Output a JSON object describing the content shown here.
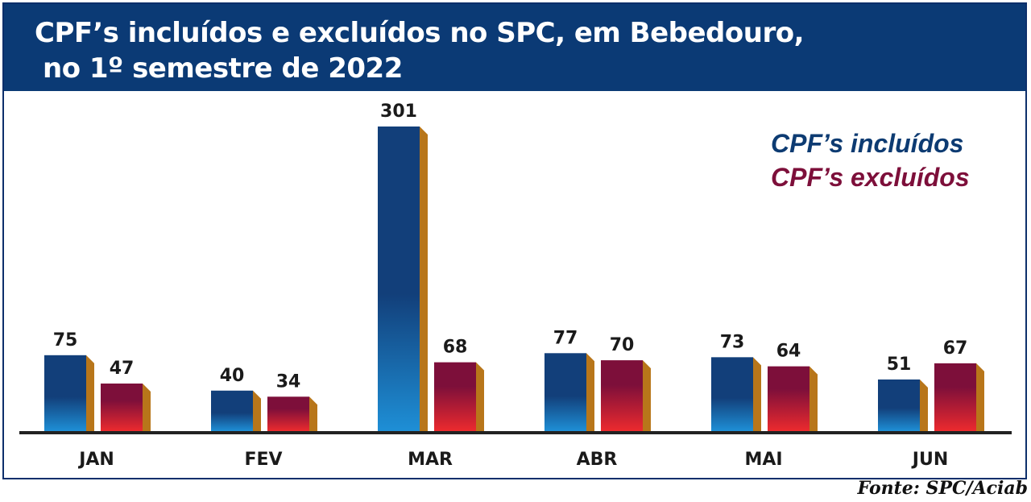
{
  "title": {
    "line1": "CPF’s incluídos e excluídos no SPC, em Bebedouro,",
    "line2": "no 1º semestre de 2022"
  },
  "legend": {
    "placement": "top-right",
    "included_label": "CPF’s incluídos",
    "excluded_label": "CPF’s excluídos"
  },
  "colors": {
    "title_bar": "#0b3a75",
    "included_top": "#123f7a",
    "included_bottom": "#1e8fd6",
    "excluded_top": "#7d0f3a",
    "excluded_bottom": "#ec2a2e",
    "bar_side": "#b8761a",
    "legend_included": "#0d3b72",
    "legend_excluded": "#7d0f3a",
    "baseline": "#222222"
  },
  "source": "Fonte: SPC/Aciab",
  "chart_data": {
    "type": "bar",
    "title": "CPF’s incluídos e excluídos no SPC, em Bebedouro, no 1º semestre de 2022",
    "categories": [
      "JAN",
      "FEV",
      "MAR",
      "ABR",
      "MAI",
      "JUN"
    ],
    "series": [
      {
        "name": "CPF’s incluídos",
        "values": [
          75,
          40,
          301,
          77,
          73,
          51
        ]
      },
      {
        "name": "CPF’s excluídos",
        "values": [
          47,
          34,
          68,
          70,
          64,
          67
        ]
      }
    ],
    "value_labels": {
      "included": [
        "75",
        "40",
        "301",
        "77",
        "73",
        "51"
      ],
      "excluded": [
        "47",
        "34",
        "68",
        "70",
        "64",
        "67"
      ]
    },
    "xlabel": "",
    "ylabel": "",
    "ylim": [
      0,
      301
    ],
    "grid": false,
    "legend": "top-right"
  }
}
